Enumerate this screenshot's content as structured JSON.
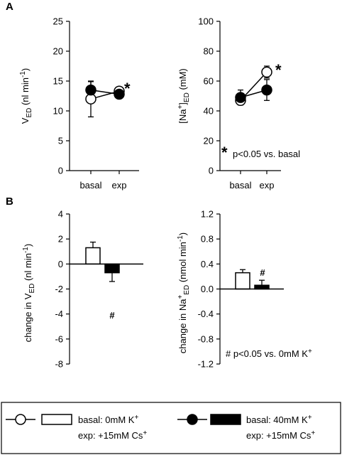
{
  "panels": {
    "A": "A",
    "B": "B"
  },
  "chart_data": [
    {
      "id": "A_left",
      "type": "line",
      "categories": [
        "basal",
        "exp"
      ],
      "ylim": [
        0,
        25
      ],
      "yticks": [
        "0",
        "5",
        "10",
        "15",
        "20",
        "25"
      ],
      "ylabel_main": "V",
      "ylabel_sub": "ED",
      "ylabel_unit": " (nl min",
      "ylabel_sup": "-1",
      "ylabel_end": ")",
      "series": [
        {
          "style": "open",
          "values": [
            12.0,
            13.3
          ],
          "errors": [
            3.0,
            0.5
          ]
        },
        {
          "style": "filled",
          "values": [
            13.5,
            12.8
          ],
          "errors": [
            1.4,
            0.5
          ]
        }
      ],
      "annotation": "*"
    },
    {
      "id": "A_right",
      "type": "line",
      "categories": [
        "basal",
        "exp"
      ],
      "ylim": [
        0,
        100
      ],
      "yticks": [
        "0",
        "20",
        "40",
        "60",
        "80",
        "100"
      ],
      "ylabel_pre": "[Na",
      "ylabel_sup": "+",
      "ylabel_mid": "]",
      "ylabel_sub": "ED",
      "ylabel_unit": " (mM)",
      "series": [
        {
          "style": "open",
          "values": [
            47,
            66
          ],
          "errors": [
            3,
            4
          ]
        },
        {
          "style": "filled",
          "values": [
            49,
            54
          ],
          "errors": [
            5,
            7
          ]
        }
      ],
      "annotation": "*",
      "note_star": "*",
      "note_text": "p<0.05 vs. basal"
    },
    {
      "id": "B_left",
      "type": "bar",
      "ylim": [
        -8,
        4
      ],
      "yticks": [
        "4",
        "2",
        "0",
        "-2",
        "-4",
        "-6",
        "-8"
      ],
      "ylabel_pre": "change in V",
      "ylabel_sub": "ED",
      "ylabel_unit": " (nl min",
      "ylabel_sup": "-1",
      "ylabel_end": ")",
      "series": [
        {
          "style": "open",
          "value": 1.3,
          "error": 0.45
        },
        {
          "style": "filled",
          "value": -0.7,
          "error": 0.7
        }
      ],
      "annotation": "#"
    },
    {
      "id": "B_right",
      "type": "bar",
      "ylim": [
        -1.2,
        1.2
      ],
      "yticks": [
        "1.2",
        "0.8",
        "0.4",
        "0.0",
        "-0.4",
        "-0.8",
        "-1.2"
      ],
      "ylabel_pre": "change in Na",
      "ylabel_sup": "+",
      "ylabel_sub": "ED",
      "ylabel_unit": " (nmol min",
      "ylabel_sup2": "-1",
      "ylabel_end": ")",
      "series": [
        {
          "style": "open",
          "value": 0.26,
          "error": 0.05
        },
        {
          "style": "filled",
          "value": 0.06,
          "error": 0.08
        }
      ],
      "annotation": "#",
      "note_text": "# p<0.05 vs. 0mM K",
      "note_sup": "+"
    }
  ],
  "legend": {
    "item1_line1": "basal: 0mM K",
    "item1_sup1": "+",
    "item1_line2": "exp: +15mM Cs",
    "item1_sup2": "+",
    "item2_line1": "basal: 40mM K",
    "item2_sup1": "+",
    "item2_line2": "exp: +15mM Cs",
    "item2_sup2": "+"
  }
}
